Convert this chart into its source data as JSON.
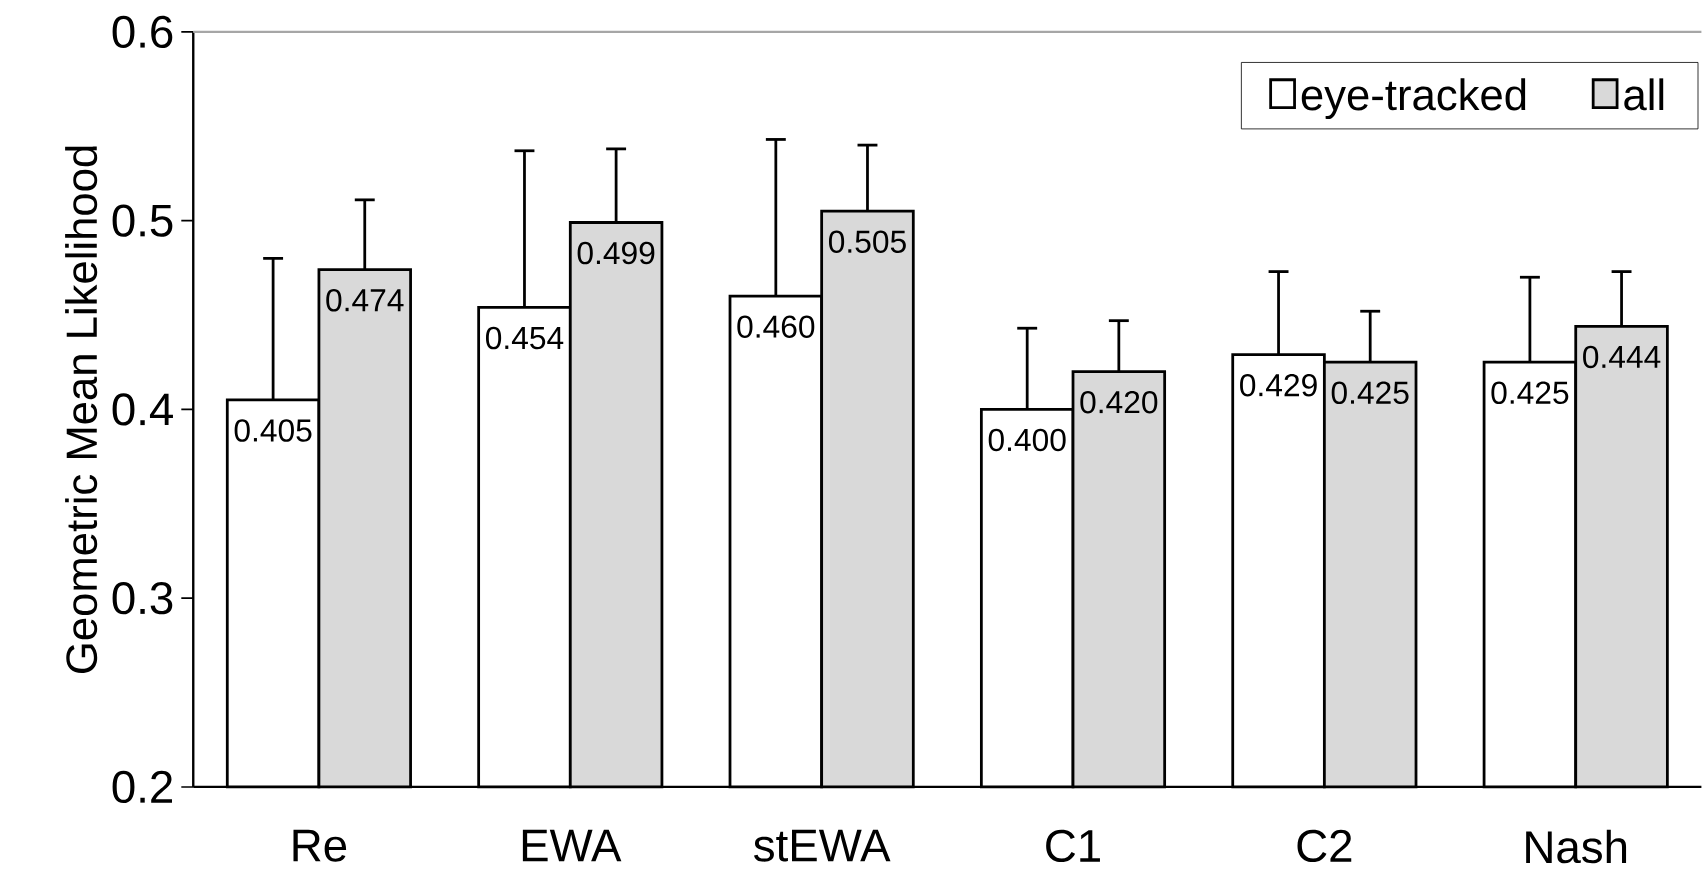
{
  "chart_data": {
    "type": "bar",
    "ylabel": "Geometric Mean Likelihood",
    "categories": [
      "Re",
      "EWA",
      "stEWA",
      "C1",
      "C2",
      "Nash"
    ],
    "series": [
      {
        "name": "eye-tracked",
        "color": "#ffffff",
        "values": [
          0.405,
          0.454,
          0.46,
          0.4,
          0.429,
          0.425
        ],
        "value_labels": [
          "0.405",
          "0.454",
          "0.460",
          "0.400",
          "0.429",
          "0.425"
        ],
        "errors": [
          [
            0.405,
            0.48
          ],
          [
            0.454,
            0.537
          ],
          [
            0.46,
            0.543
          ],
          [
            0.4,
            0.443
          ],
          [
            0.429,
            0.473
          ],
          [
            0.425,
            0.47
          ]
        ]
      },
      {
        "name": "all",
        "color": "#d9d9d9",
        "values": [
          0.474,
          0.499,
          0.505,
          0.42,
          0.425,
          0.444
        ],
        "value_labels": [
          "0.474",
          "0.499",
          "0.505",
          "0.420",
          "0.425",
          "0.444"
        ],
        "errors": [
          [
            0.474,
            0.511
          ],
          [
            0.499,
            0.538
          ],
          [
            0.505,
            0.54
          ],
          [
            0.42,
            0.447
          ],
          [
            0.425,
            0.452
          ],
          [
            0.444,
            0.473
          ]
        ]
      }
    ],
    "ylim": [
      0.2,
      0.6
    ],
    "yticks": [
      0.2,
      0.3,
      0.4,
      0.5,
      0.6
    ],
    "legend": "top right",
    "grid": false
  }
}
